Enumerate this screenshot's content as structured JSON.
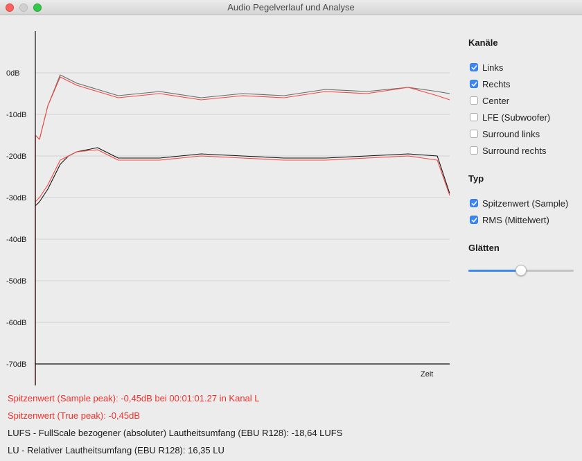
{
  "window": {
    "title": "Audio Pegelverlauf und Analyse"
  },
  "colors": {
    "accent": "#3b88f5",
    "peak_line": "#6a6a6a",
    "rms_line": "#111111",
    "right_channel": "#f04b45",
    "warning_text": "#f0312b"
  },
  "chart_data": {
    "type": "line",
    "xlabel": "Zeit",
    "ylabel": "",
    "y_tick_labels": [
      "0dB",
      "-10dB",
      "-20dB",
      "-30dB",
      "-40dB",
      "-50dB",
      "-60dB",
      "-70dB"
    ],
    "ylim": [
      -70,
      10
    ],
    "grid": true,
    "x": [
      0,
      1,
      3,
      6,
      8,
      10,
      15,
      20,
      30,
      40,
      50,
      60,
      70,
      80,
      90,
      97,
      100
    ],
    "series": [
      {
        "values": [
          -15,
          -16,
          -8,
          -0.5,
          -1.5,
          -2.5,
          -4,
          -5.5,
          -4.5,
          -6,
          -5,
          -5.5,
          -4,
          -4.5,
          -3.5,
          -4.5,
          -5
        ]
      },
      {
        "values": [
          -15,
          -16,
          -8,
          -1,
          -2,
          -3,
          -4.5,
          -6,
          -5,
          -6.5,
          -5.5,
          -6,
          -4.5,
          -5,
          -3.5,
          -5.5,
          -6.5
        ]
      },
      {
        "values": [
          -32,
          -31,
          -28,
          -22,
          -20,
          -19,
          -18,
          -20.5,
          -20.5,
          -19.5,
          -20,
          -20.5,
          -20.5,
          -20,
          -19.5,
          -20,
          -29
        ]
      },
      {
        "values": [
          -31,
          -30,
          -27,
          -21,
          -20,
          -19,
          -18.5,
          -21,
          -21,
          -20,
          -20.5,
          -21,
          -21,
          -20.5,
          -20,
          -21,
          -29.5
        ]
      }
    ]
  },
  "sidebar": {
    "channels_heading": "Kanäle",
    "channels": [
      {
        "label": "Links",
        "checked": true
      },
      {
        "label": "Rechts",
        "checked": true
      },
      {
        "label": "Center",
        "checked": false
      },
      {
        "label": "LFE (Subwoofer)",
        "checked": false
      },
      {
        "label": "Surround links",
        "checked": false
      },
      {
        "label": "Surround rechts",
        "checked": false
      }
    ],
    "type_heading": "Typ",
    "types": [
      {
        "label": "Spitzenwert (Sample)",
        "checked": true
      },
      {
        "label": "RMS (Mittelwert)",
        "checked": true
      }
    ],
    "smoothing_heading": "Glätten",
    "smoothing_value": 0.5
  },
  "info": {
    "sample_peak": "Spitzenwert (Sample peak): -0,45dB bei 00:01:01.27 in Kanal L",
    "true_peak": "Spitzenwert (True peak): -0,45dB",
    "lufs": "LUFS - FullScale bezogener (absoluter) Lautheitsumfang (EBU R128): -18,64 LUFS",
    "lu": "LU - Relativer Lautheitsumfang (EBU R128): 16,35 LU"
  }
}
